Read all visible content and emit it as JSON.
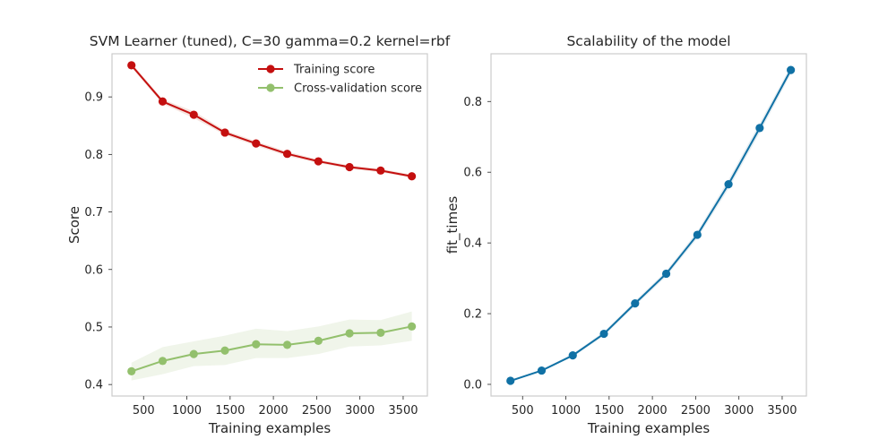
{
  "chart_data": [
    {
      "type": "line",
      "title": "SVM Learner (tuned), C=30 gamma=0.2 kernel=rbf",
      "xlabel": "Training examples",
      "ylabel": "Score",
      "xlim": [
        135,
        3780
      ],
      "ylim": [
        0.38,
        0.975
      ],
      "xticks": [
        500,
        1000,
        1500,
        2000,
        2500,
        3000,
        3500
      ],
      "yticks": [
        0.4,
        0.5,
        0.6,
        0.7,
        0.8,
        0.9
      ],
      "grid": false,
      "legend": "top-right",
      "x": [
        360,
        720,
        1080,
        1440,
        1800,
        2160,
        2520,
        2880,
        3240,
        3600
      ],
      "series": [
        {
          "name": "Training score",
          "color": "#c40f0f",
          "band_color": "#f6e4df",
          "values": [
            0.955,
            0.892,
            0.869,
            0.838,
            0.819,
            0.801,
            0.788,
            0.778,
            0.772,
            0.762
          ],
          "lower": [
            0.951,
            0.888,
            0.863,
            0.834,
            0.815,
            0.797,
            0.785,
            0.775,
            0.769,
            0.759
          ],
          "upper": [
            0.959,
            0.896,
            0.875,
            0.842,
            0.823,
            0.805,
            0.791,
            0.781,
            0.775,
            0.765
          ]
        },
        {
          "name": "Cross-validation score",
          "color": "#93c06d",
          "band_color": "#f0f5ea",
          "values": [
            0.423,
            0.441,
            0.453,
            0.459,
            0.47,
            0.469,
            0.476,
            0.489,
            0.49,
            0.501
          ],
          "lower": [
            0.407,
            0.418,
            0.432,
            0.434,
            0.446,
            0.446,
            0.453,
            0.466,
            0.468,
            0.476
          ],
          "upper": [
            0.438,
            0.465,
            0.475,
            0.485,
            0.497,
            0.493,
            0.501,
            0.513,
            0.512,
            0.527
          ]
        }
      ]
    },
    {
      "type": "line",
      "title": "Scalability of the model",
      "xlabel": "Training examples",
      "ylabel": "fit_times",
      "xlim": [
        135,
        3780
      ],
      "ylim": [
        -0.033,
        0.935
      ],
      "xticks": [
        500,
        1000,
        1500,
        2000,
        2500,
        3000,
        3500
      ],
      "yticks": [
        0.0,
        0.2,
        0.4,
        0.6,
        0.8
      ],
      "grid": false,
      "x": [
        360,
        720,
        1080,
        1440,
        1800,
        2160,
        2520,
        2880,
        3240,
        3600
      ],
      "series": [
        {
          "color": "#1071a5",
          "band_color": "#e6eef2",
          "values": [
            0.01,
            0.039,
            0.082,
            0.143,
            0.229,
            0.313,
            0.423,
            0.566,
            0.725,
            0.889
          ],
          "lower": [
            0.008,
            0.036,
            0.078,
            0.137,
            0.222,
            0.305,
            0.413,
            0.553,
            0.711,
            0.878
          ],
          "upper": [
            0.012,
            0.042,
            0.086,
            0.149,
            0.236,
            0.321,
            0.433,
            0.579,
            0.739,
            0.9
          ]
        }
      ]
    }
  ]
}
